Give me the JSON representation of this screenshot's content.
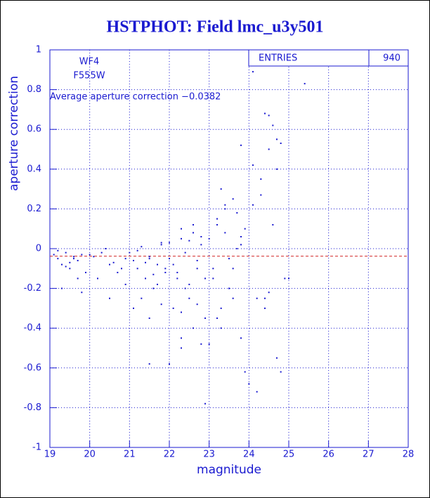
{
  "chart_data": {
    "type": "scatter",
    "title": "HSTPHOT: Field lmc_u3y501",
    "x_label": "magnitude",
    "y_label": "aperture correction",
    "annotations": [
      "WF4",
      "F555W",
      "Average aperture correction −0.0382"
    ],
    "stats": {
      "label": "ENTRIES",
      "value": "940"
    },
    "reference_line": {
      "value": -0.0382,
      "color": "#d02020"
    },
    "color": "#1a1ad0",
    "grid": true,
    "xlim": [
      19,
      28
    ],
    "xticks": [
      19,
      20,
      21,
      22,
      23,
      24,
      25,
      26,
      27,
      28
    ],
    "ylim": [
      -1,
      1
    ],
    "yticks": [
      -1,
      -0.8,
      -0.6,
      -0.4,
      -0.2,
      0,
      0.2,
      0.4,
      0.6,
      0.8,
      1
    ],
    "x": [
      19.1,
      19.2,
      19.3,
      19.4,
      19.5,
      19.6,
      19.7,
      19.8,
      19.9,
      19.3,
      19.5,
      19.7,
      19.2,
      19.4,
      19.6,
      19.8,
      20.1,
      20.3,
      20.5,
      20.7,
      20.9,
      20.2,
      20.4,
      20.6,
      20.8,
      20.0,
      20.5,
      20.9,
      21.0,
      21.1,
      21.2,
      21.3,
      21.4,
      21.5,
      21.6,
      21.7,
      21.8,
      21.9,
      21.1,
      21.3,
      21.5,
      21.7,
      21.9,
      21.2,
      21.4,
      21.6,
      21.8,
      21.5,
      21.8,
      22.0,
      22.1,
      22.2,
      22.3,
      22.4,
      22.5,
      22.6,
      22.7,
      22.8,
      22.9,
      22.0,
      22.2,
      22.4,
      22.6,
      22.8,
      22.1,
      22.3,
      22.5,
      22.7,
      22.9,
      22.3,
      22.5,
      22.7,
      22.9,
      22.3,
      22.6,
      23.0,
      23.1,
      23.2,
      23.3,
      23.4,
      23.5,
      23.6,
      23.7,
      23.8,
      23.9,
      23.1,
      23.3,
      23.5,
      23.7,
      23.9,
      23.2,
      23.4,
      23.6,
      23.8,
      23.0,
      23.2,
      23.4,
      23.6,
      23.8,
      24.1,
      24.4,
      24.5,
      25.4,
      24.6,
      24.7,
      24.5,
      24.8,
      24.7,
      23.8,
      24.1,
      24.3,
      24.3,
      24.0,
      24.2,
      24.4,
      24.5,
      24.6,
      24.9,
      24.4,
      24.7,
      24.8,
      24.2,
      24.1,
      22.3,
      21.5,
      22.0,
      22.8,
      23.3,
      25.0
    ],
    "y": [
      -0.03,
      -0.05,
      -0.08,
      -0.02,
      -0.1,
      -0.04,
      -0.06,
      -0.03,
      -0.12,
      -0.2,
      -0.07,
      -0.15,
      -0.01,
      -0.09,
      -0.05,
      -0.22,
      -0.04,
      -0.02,
      -0.08,
      -0.12,
      -0.05,
      -0.15,
      0.0,
      -0.07,
      -0.1,
      -0.03,
      -0.25,
      -0.18,
      -0.02,
      -0.06,
      -0.1,
      0.01,
      -0.15,
      -0.05,
      -0.2,
      -0.08,
      0.02,
      -0.12,
      -0.3,
      -0.25,
      -0.04,
      -0.18,
      -0.1,
      -0.01,
      -0.07,
      -0.13,
      0.03,
      -0.58,
      -0.28,
      0.03,
      -0.08,
      -0.15,
      0.05,
      -0.02,
      -0.25,
      0.08,
      -0.1,
      0.02,
      -0.35,
      -0.05,
      -0.12,
      -0.2,
      -0.4,
      0.06,
      -0.3,
      0.1,
      -0.18,
      -0.06,
      -0.78,
      -0.45,
      0.04,
      -0.28,
      -0.15,
      -0.5,
      0.12,
      0.05,
      -0.1,
      0.15,
      -0.3,
      0.2,
      -0.2,
      0.25,
      0.0,
      -0.45,
      0.1,
      -0.15,
      0.3,
      -0.05,
      0.18,
      -0.62,
      -0.35,
      0.08,
      -0.25,
      0.02,
      -0.48,
      0.12,
      0.22,
      -0.1,
      0.06,
      0.89,
      0.68,
      0.67,
      0.83,
      0.62,
      0.55,
      0.5,
      0.53,
      0.4,
      0.52,
      0.42,
      0.35,
      0.27,
      -0.68,
      -0.25,
      -0.3,
      -0.22,
      0.12,
      -0.15,
      -0.25,
      -0.55,
      -0.62,
      -0.72,
      0.22,
      -0.32,
      -0.35,
      -0.58,
      -0.48,
      -0.4,
      -0.15
    ]
  }
}
